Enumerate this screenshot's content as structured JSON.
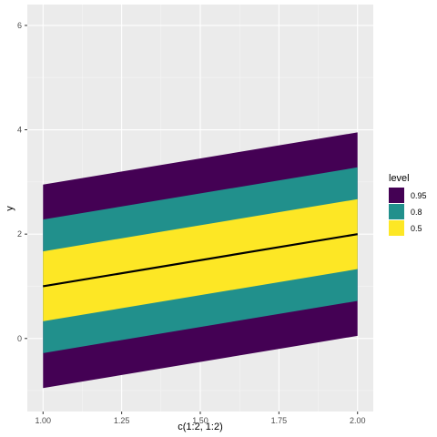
{
  "chart_data": {
    "type": "area",
    "xlabel": "c(1:2, 1:2)",
    "ylabel": "y",
    "xlim": [
      0.95,
      2.05
    ],
    "ylim": [
      -1.4,
      6.4
    ],
    "x_ticks": [
      1.0,
      1.25,
      1.5,
      1.75,
      2.0
    ],
    "x_tick_labels": [
      "1.00",
      "1.25",
      "1.50",
      "1.75",
      "2.00"
    ],
    "y_ticks": [
      0,
      2,
      4,
      6
    ],
    "y_tick_labels": [
      "0",
      "2",
      "4",
      "6"
    ],
    "grid": true,
    "legend": {
      "title": "level",
      "placement": "right",
      "entries": [
        {
          "label": "0.95",
          "color": "#440154"
        },
        {
          "label": "0.8",
          "color": "#21908C"
        },
        {
          "label": "0.5",
          "color": "#FDE725"
        }
      ]
    },
    "bands": [
      {
        "level": "0.95",
        "color": "#440154",
        "x": [
          1,
          2
        ],
        "lower": [
          -0.95,
          0.05
        ],
        "upper": [
          2.95,
          3.95
        ]
      },
      {
        "level": "0.8",
        "color": "#21908C",
        "x": [
          1,
          2
        ],
        "lower": [
          -0.28,
          0.72
        ],
        "upper": [
          2.28,
          3.28
        ]
      },
      {
        "level": "0.5",
        "color": "#FDE725",
        "x": [
          1,
          2
        ],
        "lower": [
          0.33,
          1.33
        ],
        "upper": [
          1.67,
          2.67
        ]
      }
    ],
    "line": {
      "x": [
        1,
        2
      ],
      "y": [
        1,
        2
      ],
      "color": "#000000"
    }
  }
}
